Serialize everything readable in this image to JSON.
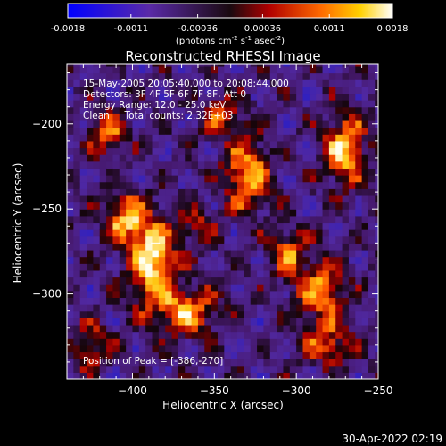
{
  "chart_data": {
    "type": "heatmap",
    "title": "Reconstructed RHESSI Image",
    "xlabel": "Heliocentric X (arcsec)",
    "ylabel": "Heliocentric Y (arcsec)",
    "xlim": [
      -440,
      -250
    ],
    "ylim": [
      -350,
      -165
    ],
    "x_ticks": [
      -400,
      -350,
      -300,
      -250
    ],
    "y_ticks": [
      -200,
      -250,
      -300
    ],
    "colorbar": {
      "range": [
        -0.0018,
        0.0018
      ],
      "tick_values": [
        -0.0018,
        -0.0011,
        -0.00036,
        0.00036,
        0.0011,
        0.0018
      ],
      "tick_labels": [
        "-0.0018",
        "-0.0011",
        "-0.00036",
        "0.00036",
        "0.0011",
        "0.0018"
      ],
      "unit_label_parts": [
        "(photons cm",
        "-2",
        " s",
        "-1",
        " asec",
        "-2",
        ")"
      ]
    },
    "annotations": [
      "15-May-2005 20:05:40.000 to 20:08:44.000",
      "Detectors: 3F 4F 5F 6F 7F 8F, Att 0",
      "Energy Range: 12.0 - 25.0 keV",
      "Clean     Total counts: 2.32E+03"
    ],
    "peak": {
      "label": "Position of Peak = [-386,-270]",
      "x": -386,
      "y": -270
    },
    "hotspots": [
      {
        "x": -388,
        "y": -280,
        "amp": 1.0,
        "sx": 10,
        "sy": 16
      },
      {
        "x": -404,
        "y": -255,
        "amp": 0.75,
        "sx": 9,
        "sy": 10
      },
      {
        "x": -368,
        "y": -310,
        "amp": 0.7,
        "sx": 14,
        "sy": 10
      },
      {
        "x": -330,
        "y": -230,
        "amp": 0.8,
        "sx": 10,
        "sy": 14
      },
      {
        "x": -270,
        "y": -215,
        "amp": 0.85,
        "sx": 9,
        "sy": 14
      },
      {
        "x": -285,
        "y": -300,
        "amp": 0.7,
        "sx": 10,
        "sy": 14
      },
      {
        "x": -415,
        "y": -205,
        "amp": 0.6,
        "sx": 8,
        "sy": 10
      },
      {
        "x": -280,
        "y": -330,
        "amp": 0.55,
        "sx": 10,
        "sy": 8
      },
      {
        "x": -305,
        "y": -275,
        "amp": 0.6,
        "sx": 8,
        "sy": 10
      },
      {
        "x": -345,
        "y": -195,
        "amp": 0.55,
        "sx": 9,
        "sy": 8
      },
      {
        "x": -425,
        "y": -330,
        "amp": 0.5,
        "sx": 8,
        "sy": 10
      },
      {
        "x": -360,
        "y": -260,
        "amp": 0.45,
        "sx": 8,
        "sy": 8
      }
    ]
  },
  "footer": {
    "timestamp": "30-Apr-2022 02:19"
  }
}
